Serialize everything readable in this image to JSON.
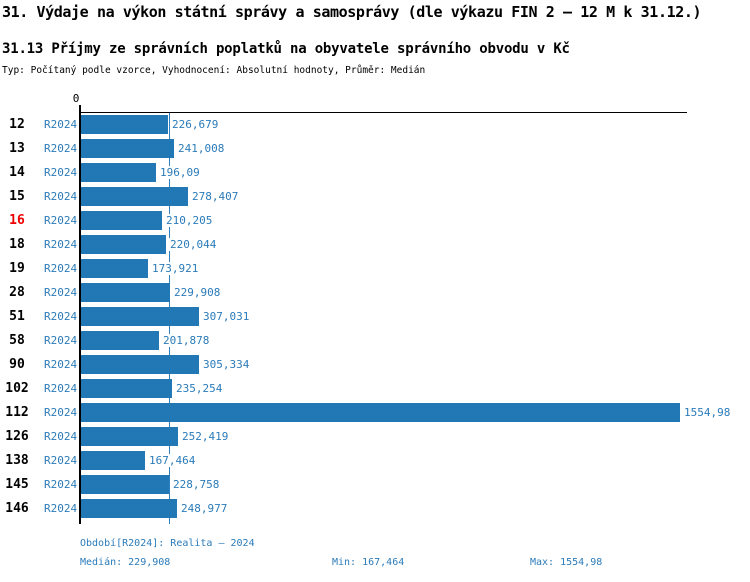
{
  "header": {
    "title": "31. Výdaje na výkon státní správy a samosprávy (dle výkazu FIN 2 – 12 M k 31.12.)",
    "subtitle": "31.13 Příjmy ze správních poplatků na obyvatele správního obvodu v Kč",
    "meta": "Typ: Počítaný podle vzorce, Vyhodnocení: Absolutní hodnoty, Průměr: Medián"
  },
  "axis": {
    "zero_label": "0"
  },
  "period_label": "R2024",
  "chart_data": {
    "type": "bar",
    "orientation": "horizontal",
    "title": "31.13 Příjmy ze správních poplatků na obyvatele správního obvodu v Kč",
    "categories": [
      "12",
      "13",
      "14",
      "15",
      "16",
      "18",
      "19",
      "28",
      "51",
      "58",
      "90",
      "102",
      "112",
      "126",
      "138",
      "145",
      "146"
    ],
    "highlighted_category": "16",
    "series": [
      {
        "name": "R2024",
        "values": [
          226.679,
          241.008,
          196.09,
          278.407,
          210.205,
          220.044,
          173.921,
          229.908,
          307.031,
          201.878,
          305.334,
          235.254,
          1554.98,
          252.419,
          167.464,
          228.758,
          248.977
        ]
      }
    ],
    "value_labels": [
      "226,679",
      "241,008",
      "196,09",
      "278,407",
      "210,205",
      "220,044",
      "173,921",
      "229,908",
      "307,031",
      "201,878",
      "305,334",
      "235,254",
      "1554,98",
      "252,419",
      "167,464",
      "228,758",
      "248,977"
    ],
    "median_reference_line": 229.908,
    "xlim": [
      0,
      1575
    ],
    "grid": false,
    "legend": false
  },
  "footer": {
    "period_info": "Období[R2024]: Realita – 2024",
    "median": "Medián: 229,908",
    "min": "Min: 167,464",
    "max": "Max: 1554,98"
  },
  "colors": {
    "bar": "#2278B5",
    "text_blue": "#2B7BB9",
    "median_line": "#2F80BE",
    "highlight_red": "#EE0000",
    "axis": "#000000"
  }
}
